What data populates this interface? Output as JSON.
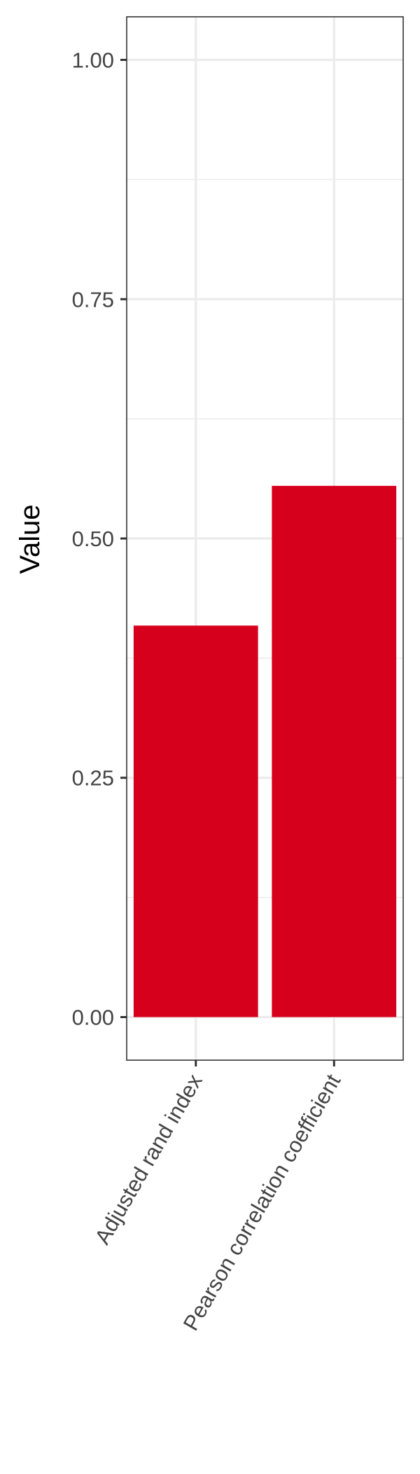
{
  "chart_data": {
    "type": "bar",
    "categories": [
      "Adjusted rand index",
      "Pearson correlation coefficient"
    ],
    "values": [
      0.409,
      0.555
    ],
    "title": "",
    "xlabel": "",
    "ylabel": "Value",
    "ylim": [
      -0.045,
      1.045
    ],
    "yticks": [
      0.0,
      0.25,
      0.5,
      0.75,
      1.0
    ],
    "ytick_labels": [
      "0.00",
      "0.25",
      "0.50",
      "0.75",
      "1.00"
    ],
    "minor_yticks": [
      0.125,
      0.375,
      0.625,
      0.875
    ],
    "grid": true,
    "legend": "none",
    "bar_color": "#d7001c",
    "grid_color": "#ebebeb",
    "border_color": "#333333",
    "text_color": "#444444"
  }
}
